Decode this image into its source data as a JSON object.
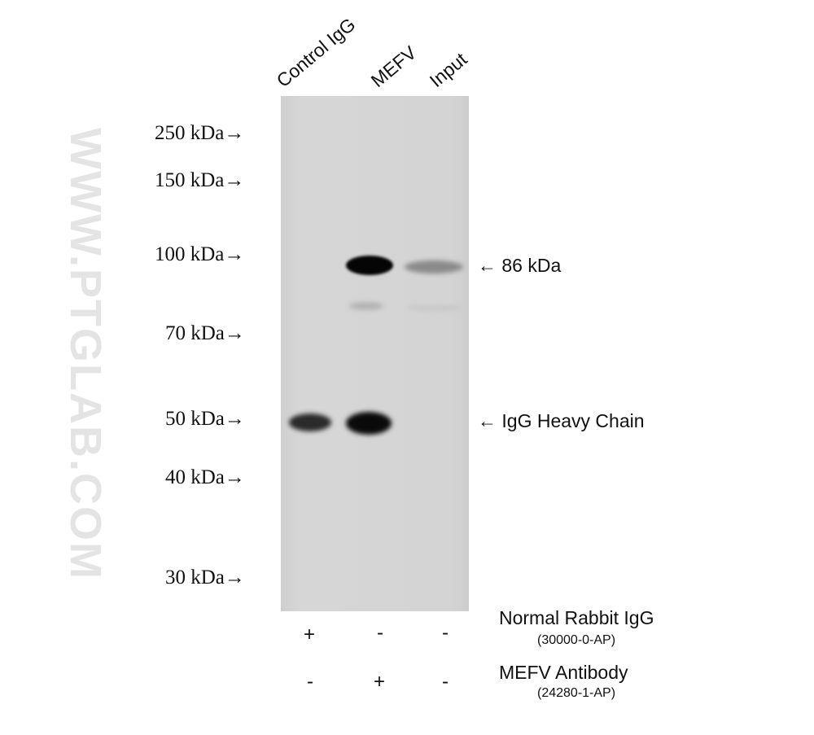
{
  "watermark": "WWW.PTGLAB.COM",
  "lanes": [
    "Control IgG",
    "MEFV",
    "Input"
  ],
  "markers": [
    "250 kDa→",
    "150 kDa→",
    "100 kDa→",
    "70 kDa→",
    "50 kDa→",
    "40 kDa→",
    "30 kDa→"
  ],
  "annotations": {
    "band1": "← 86 kDa",
    "band2": "← IgG Heavy Chain"
  },
  "rows": [
    {
      "label": "Normal Rabbit IgG",
      "catalog": "(30000-0-AP)",
      "signs": [
        "+",
        "-",
        "-"
      ]
    },
    {
      "label": "MEFV Antibody",
      "catalog": "(24280-1-AP)",
      "signs": [
        "-",
        "+",
        "-"
      ]
    }
  ]
}
